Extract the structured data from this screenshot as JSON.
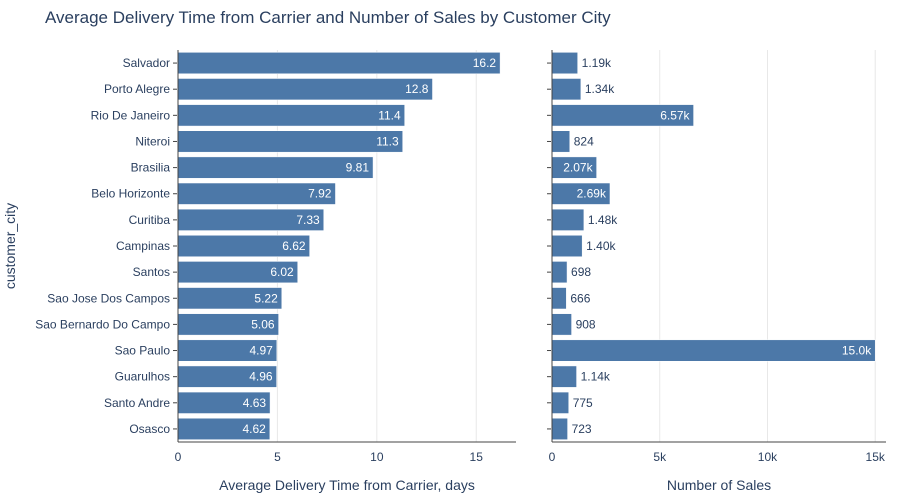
{
  "title": "Average Delivery Time from Carrier and Number of Sales by Customer City",
  "chart_data": [
    {
      "type": "bar",
      "orientation": "horizontal",
      "title": "",
      "xlabel": "Average Delivery Time from Carrier, days",
      "ylabel": "customer_city",
      "xlim": [
        0,
        17
      ],
      "xticks": [
        0,
        5,
        10,
        15
      ],
      "xtick_labels": [
        "0",
        "5",
        "10",
        "15"
      ],
      "grid": true,
      "bar_color": "#4c78a8",
      "categories": [
        "Salvador",
        "Porto Alegre",
        "Rio De Janeiro",
        "Niteroi",
        "Brasilia",
        "Belo Horizonte",
        "Curitiba",
        "Campinas",
        "Santos",
        "Sao Jose Dos Campos",
        "Sao Bernardo Do Campo",
        "Sao Paulo",
        "Guarulhos",
        "Santo Andre",
        "Osasco"
      ],
      "values": [
        16.2,
        12.8,
        11.4,
        11.3,
        9.81,
        7.92,
        7.33,
        6.62,
        6.02,
        5.22,
        5.06,
        4.97,
        4.96,
        4.63,
        4.62
      ],
      "value_labels": [
        "16.2",
        "12.8",
        "11.4",
        "11.3",
        "9.81",
        "7.92",
        "7.33",
        "6.62",
        "6.02",
        "5.22",
        "5.06",
        "4.97",
        "4.96",
        "4.63",
        "4.62"
      ]
    },
    {
      "type": "bar",
      "orientation": "horizontal",
      "title": "",
      "xlabel": "Number of Sales",
      "ylabel": "",
      "xlim": [
        0,
        15500
      ],
      "xticks": [
        0,
        5000,
        10000,
        15000
      ],
      "xtick_labels": [
        "0",
        "5k",
        "10k",
        "15k"
      ],
      "grid": true,
      "bar_color": "#4c78a8",
      "categories": [
        "Salvador",
        "Porto Alegre",
        "Rio De Janeiro",
        "Niteroi",
        "Brasilia",
        "Belo Horizonte",
        "Curitiba",
        "Campinas",
        "Santos",
        "Sao Jose Dos Campos",
        "Sao Bernardo Do Campo",
        "Sao Paulo",
        "Guarulhos",
        "Santo Andre",
        "Osasco"
      ],
      "values": [
        1190,
        1340,
        6570,
        824,
        2070,
        2690,
        1480,
        1400,
        698,
        666,
        908,
        15000,
        1140,
        775,
        723
      ],
      "value_labels": [
        "1.19k",
        "1.34k",
        "6.57k",
        "824",
        "2.07k",
        "2.69k",
        "1.48k",
        "1.40k",
        "698",
        "666",
        "908",
        "15.0k",
        "1.14k",
        "775",
        "723"
      ]
    }
  ]
}
